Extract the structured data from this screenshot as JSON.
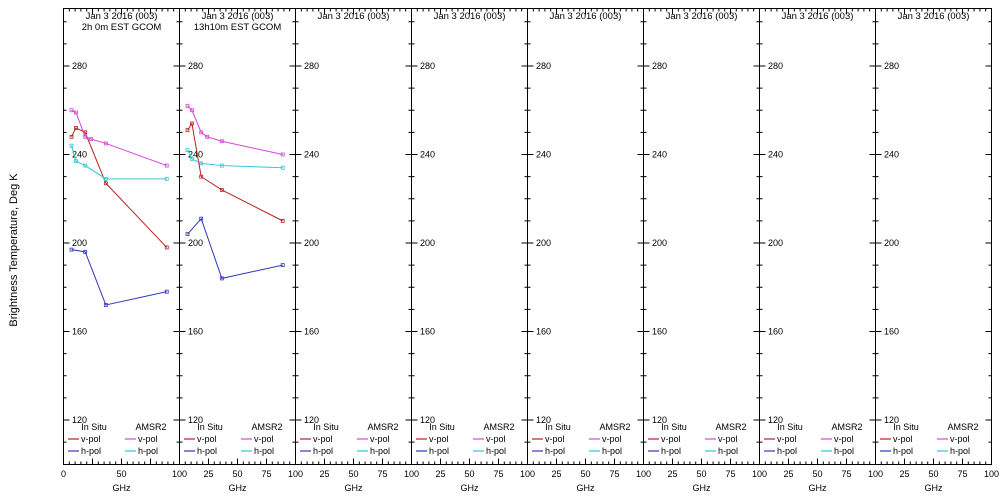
{
  "figure": {
    "background": "#ffffff",
    "y_axis_title": "Brightness Temperature, Deg K"
  },
  "axis": {
    "xlabel": "GHz",
    "y_ticks": [
      120,
      160,
      200,
      240,
      280
    ],
    "x_ticks": [
      0,
      25,
      50,
      75,
      100
    ],
    "x_tick_labels_first_panel": [
      "0",
      "50",
      "100"
    ],
    "x_tick_labels_other_panels": [
      "25",
      "50",
      "75",
      "100"
    ],
    "xlim": [
      0,
      100
    ],
    "ylim": [
      100,
      306
    ],
    "grid": false
  },
  "legend": {
    "position": "bottom-inside",
    "columns": [
      "In Situ",
      "AMSR2"
    ],
    "rows": [
      "v-pol",
      "h-pol"
    ],
    "colors": {
      "in_situ_v": "#bb2020",
      "in_situ_h": "#3038b8",
      "amsr2_v": "#d545d5",
      "amsr2_h": "#35c5d5"
    }
  },
  "chart_data": [
    {
      "type": "line",
      "title": "Jan 3 2016 (003)",
      "subtitle": "2h 0m EST GCOM",
      "xlabel": "GHz",
      "ylabel": "Brightness Temperature, Deg K",
      "xlim": [
        0,
        100
      ],
      "series": [
        {
          "name": "In Situ v-pol",
          "color_key": "in_situ_v",
          "x": [
            6.9,
            10.7,
            18.7,
            36.5,
            89.0
          ],
          "y": [
            248,
            252,
            250,
            227,
            198
          ]
        },
        {
          "name": "AMSR2 v-pol",
          "color_key": "amsr2_v",
          "x": [
            6.9,
            10.7,
            18.7,
            23.8,
            36.5,
            89.0
          ],
          "y": [
            260,
            259,
            248,
            247,
            245,
            235
          ]
        },
        {
          "name": "In Situ h-pol",
          "color_key": "in_situ_h",
          "x": [
            6.9,
            18.7,
            36.5,
            89.0
          ],
          "y": [
            197,
            196,
            172,
            178
          ]
        },
        {
          "name": "AMSR2 h-pol",
          "color_key": "amsr2_h",
          "x": [
            6.9,
            10.7,
            18.7,
            36.5,
            89.0
          ],
          "y": [
            244,
            237,
            235,
            229,
            229
          ]
        }
      ]
    },
    {
      "type": "line",
      "title": "Jan 3 2016 (003)",
      "subtitle": "13h10m EST GCOM",
      "xlabel": "GHz",
      "ylabel": "Brightness Temperature, Deg K",
      "xlim": [
        0,
        100
      ],
      "series": [
        {
          "name": "In Situ v-pol",
          "color_key": "in_situ_v",
          "x": [
            6.9,
            10.7,
            18.7,
            36.5,
            89.0
          ],
          "y": [
            251,
            254,
            230,
            224,
            210
          ]
        },
        {
          "name": "AMSR2 v-pol",
          "color_key": "amsr2_v",
          "x": [
            6.9,
            10.7,
            18.7,
            23.8,
            36.5,
            89.0
          ],
          "y": [
            262,
            260,
            250,
            248,
            246,
            240
          ]
        },
        {
          "name": "In Situ h-pol",
          "color_key": "in_situ_h",
          "x": [
            6.9,
            18.7,
            36.5,
            89.0
          ],
          "y": [
            204,
            211,
            184,
            190
          ]
        },
        {
          "name": "AMSR2 h-pol",
          "color_key": "amsr2_h",
          "x": [
            6.9,
            10.7,
            18.7,
            36.5,
            89.0
          ],
          "y": [
            242,
            238,
            236,
            235,
            234
          ]
        }
      ]
    },
    {
      "type": "line",
      "title": "Jan 3 2016 (003)",
      "subtitle": "",
      "xlabel": "GHz",
      "xlim": [
        0,
        100
      ],
      "series": []
    },
    {
      "type": "line",
      "title": "Jan 3 2016 (003)",
      "subtitle": "",
      "xlabel": "GHz",
      "xlim": [
        0,
        100
      ],
      "series": []
    },
    {
      "type": "line",
      "title": "Jan 3 2016 (003)",
      "subtitle": "",
      "xlabel": "GHz",
      "xlim": [
        0,
        100
      ],
      "series": []
    },
    {
      "type": "line",
      "title": "Jan 3 2016 (003)",
      "subtitle": "",
      "xlabel": "GHz",
      "xlim": [
        0,
        100
      ],
      "series": []
    },
    {
      "type": "line",
      "title": "Jan 3 2016 (003)",
      "subtitle": "",
      "xlabel": "GHz",
      "xlim": [
        0,
        100
      ],
      "series": []
    },
    {
      "type": "line",
      "title": "Jan 3 2016 (003)",
      "subtitle": "",
      "xlabel": "GHz",
      "xlim": [
        0,
        100
      ],
      "series": []
    }
  ]
}
